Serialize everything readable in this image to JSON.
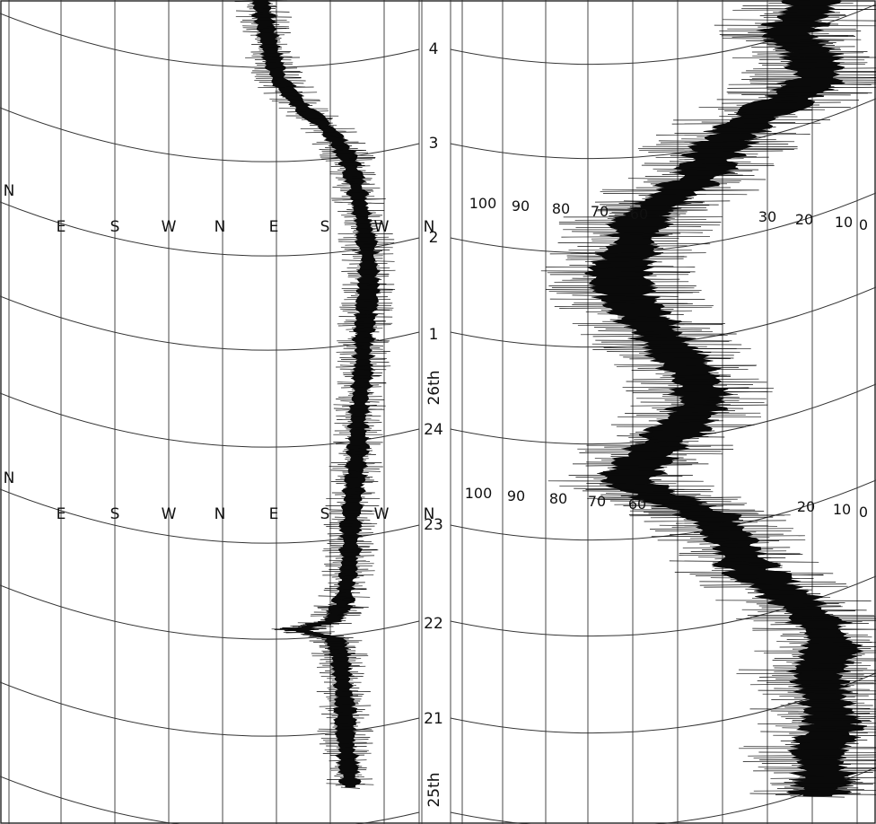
{
  "chart_data": {
    "type": "line",
    "hour_labels": [
      "4",
      "3",
      "2",
      "1",
      "24",
      "23",
      "22",
      "21"
    ],
    "date_labels": [
      "26th",
      "25th"
    ],
    "direction_labels": [
      [
        "N",
        "E",
        "S",
        "W",
        "N",
        "E",
        "S",
        "W",
        "N"
      ],
      [
        "N",
        "E",
        "S",
        "W",
        "N",
        "E",
        "S",
        "W",
        "N"
      ]
    ],
    "speed_labels": [
      [
        "100",
        "90",
        "80",
        "70",
        "60",
        "30",
        "20",
        "10",
        "0"
      ],
      [
        "100",
        "90",
        "80",
        "70",
        "60",
        "20",
        "10",
        "0"
      ]
    ],
    "series": [
      {
        "values": [
          {
            "y": 4.9,
            "x": 1.05
          },
          {
            "y": 4.6,
            "x": 0.98
          },
          {
            "y": 4.3,
            "x": 1.0
          },
          {
            "y": 4.0,
            "x": 1.02
          },
          {
            "y": 3.7,
            "x": 1.05
          },
          {
            "y": 3.4,
            "x": 1.13
          },
          {
            "y": 3.1,
            "x": 1.25
          },
          {
            "y": 2.8,
            "x": 1.32
          },
          {
            "y": 2.5,
            "x": 1.35
          },
          {
            "y": 2.2,
            "x": 1.37
          },
          {
            "y": 1.9,
            "x": 1.39
          },
          {
            "y": 1.6,
            "x": 1.4
          },
          {
            "y": 1.3,
            "x": 1.4
          },
          {
            "y": 1.0,
            "x": 1.39
          },
          {
            "y": 0.7,
            "x": 1.38
          },
          {
            "y": 0.4,
            "x": 1.38
          },
          {
            "y": 0.1,
            "x": 1.37
          },
          {
            "y": -0.2,
            "x": 1.36
          },
          {
            "y": -0.5,
            "x": 1.36
          },
          {
            "y": -0.8,
            "x": 1.35
          },
          {
            "y": -1.1,
            "x": 1.34
          },
          {
            "y": -1.4,
            "x": 1.33
          },
          {
            "y": -1.7,
            "x": 1.33
          },
          {
            "y": -2.0,
            "x": 1.32
          },
          {
            "y": -2.3,
            "x": 1.3
          },
          {
            "y": -2.5,
            "x": 1.26
          },
          {
            "y": -2.6,
            "x": 1.12
          },
          {
            "y": -2.7,
            "x": 1.27
          },
          {
            "y": -2.9,
            "x": 1.29
          },
          {
            "y": -3.2,
            "x": 1.3
          },
          {
            "y": -3.5,
            "x": 1.31
          },
          {
            "y": -3.8,
            "x": 1.31
          },
          {
            "y": -4.1,
            "x": 1.32
          },
          {
            "y": -4.4,
            "x": 1.33
          }
        ]
      },
      {
        "values": [
          {
            "y": 4.9,
            "x": 12
          },
          {
            "y": 4.5,
            "x": 14
          },
          {
            "y": 4.2,
            "x": 20
          },
          {
            "y": 4.0,
            "x": 14
          },
          {
            "y": 3.7,
            "x": 12
          },
          {
            "y": 3.5,
            "x": 18
          },
          {
            "y": 3.2,
            "x": 30
          },
          {
            "y": 2.9,
            "x": 38
          },
          {
            "y": 2.6,
            "x": 42
          },
          {
            "y": 2.3,
            "x": 52
          },
          {
            "y": 2.1,
            "x": 58
          },
          {
            "y": 1.8,
            "x": 60
          },
          {
            "y": 1.5,
            "x": 64
          },
          {
            "y": 1.2,
            "x": 62
          },
          {
            "y": 0.9,
            "x": 56
          },
          {
            "y": 0.6,
            "x": 50
          },
          {
            "y": 0.3,
            "x": 44
          },
          {
            "y": 0.0,
            "x": 42
          },
          {
            "y": -0.3,
            "x": 48
          },
          {
            "y": -0.6,
            "x": 56
          },
          {
            "y": -0.9,
            "x": 62
          },
          {
            "y": -1.1,
            "x": 52
          },
          {
            "y": -1.3,
            "x": 40
          },
          {
            "y": -1.6,
            "x": 34
          },
          {
            "y": -1.9,
            "x": 30
          },
          {
            "y": -2.2,
            "x": 20
          },
          {
            "y": -2.5,
            "x": 12
          },
          {
            "y": -2.8,
            "x": 8
          },
          {
            "y": -3.1,
            "x": 12
          },
          {
            "y": -3.4,
            "x": 10
          },
          {
            "y": -3.7,
            "x": 8
          },
          {
            "y": -4.0,
            "x": 12
          },
          {
            "y": -4.3,
            "x": 10
          },
          {
            "y": -4.5,
            "x": 12
          }
        ]
      }
    ]
  }
}
